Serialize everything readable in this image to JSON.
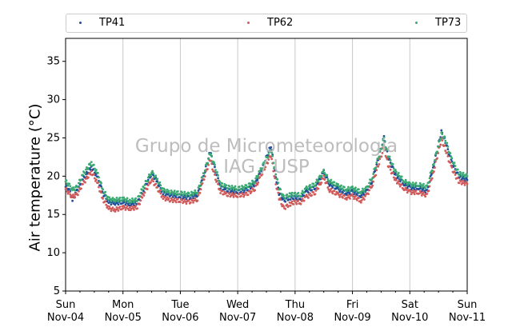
{
  "chart_data": {
    "type": "scatter",
    "ylabel": "Air temperature (°C)",
    "ylim": [
      5,
      38
    ],
    "yticks": [
      5,
      10,
      15,
      20,
      25,
      30,
      35
    ],
    "xlim": [
      "2018-11-04",
      "2018-11-11"
    ],
    "xticks": [
      {
        "day": "Sun",
        "date": "Nov-04"
      },
      {
        "day": "Mon",
        "date": "Nov-05"
      },
      {
        "day": "Tue",
        "date": "Nov-06"
      },
      {
        "day": "Wed",
        "date": "Nov-07"
      },
      {
        "day": "Thu",
        "date": "Nov-08"
      },
      {
        "day": "Fri",
        "date": "Nov-09"
      },
      {
        "day": "Sat",
        "date": "Nov-10"
      },
      {
        "day": "Sun",
        "date": "Nov-11"
      }
    ],
    "grid": "vertical",
    "legend_position": "top",
    "watermark": [
      "Grupo de Micrometeorologia",
      "IAG / USP"
    ],
    "series": [
      {
        "name": "TP41",
        "color": "#1f4e9a",
        "points": [
          [
            0,
            18.6
          ],
          [
            0.08,
            18.0
          ],
          [
            0.12,
            16.8
          ],
          [
            0.2,
            18.2
          ],
          [
            0.3,
            19.6
          ],
          [
            0.45,
            21.2
          ],
          [
            0.55,
            20.0
          ],
          [
            0.65,
            17.8
          ],
          [
            0.75,
            16.6
          ],
          [
            0.85,
            16.5
          ],
          [
            1,
            16.6
          ],
          [
            1.12,
            16.4
          ],
          [
            1.25,
            16.5
          ],
          [
            1.35,
            18.0
          ],
          [
            1.5,
            20.4
          ],
          [
            1.6,
            19.2
          ],
          [
            1.7,
            17.8
          ],
          [
            1.8,
            17.6
          ],
          [
            2,
            17.4
          ],
          [
            2.15,
            17.2
          ],
          [
            2.3,
            17.6
          ],
          [
            2.4,
            19.8
          ],
          [
            2.52,
            23.2
          ],
          [
            2.6,
            21.0
          ],
          [
            2.7,
            18.6
          ],
          [
            2.8,
            18.2
          ],
          [
            3,
            18.0
          ],
          [
            3.15,
            18.2
          ],
          [
            3.3,
            19.0
          ],
          [
            3.4,
            20.5
          ],
          [
            3.58,
            24.0
          ],
          [
            3.65,
            20.5
          ],
          [
            3.72,
            17.8
          ],
          [
            3.8,
            16.8
          ],
          [
            3.92,
            17.2
          ],
          [
            4.0,
            17.2
          ],
          [
            4.1,
            17.2
          ],
          [
            4.2,
            18.0
          ],
          [
            4.35,
            18.6
          ],
          [
            4.5,
            20.5
          ],
          [
            4.6,
            19.0
          ],
          [
            4.75,
            18.3
          ],
          [
            4.9,
            17.8
          ],
          [
            5.0,
            18.0
          ],
          [
            5.15,
            17.5
          ],
          [
            5.25,
            18.0
          ],
          [
            5.35,
            19.5
          ],
          [
            5.55,
            25.0
          ],
          [
            5.62,
            22.5
          ],
          [
            5.75,
            20.2
          ],
          [
            5.9,
            19.0
          ],
          [
            6.0,
            18.5
          ],
          [
            6.15,
            18.5
          ],
          [
            6.3,
            18.0
          ],
          [
            6.42,
            21.5
          ],
          [
            6.55,
            25.8
          ],
          [
            6.62,
            24.5
          ],
          [
            6.72,
            22.0
          ],
          [
            6.85,
            20.0
          ],
          [
            7,
            19.5
          ]
        ]
      },
      {
        "name": "TP62",
        "color": "#d05a5a",
        "points": [
          [
            0,
            18.3
          ],
          [
            0.08,
            17.6
          ],
          [
            0.12,
            17.3
          ],
          [
            0.2,
            17.6
          ],
          [
            0.3,
            19.0
          ],
          [
            0.45,
            20.6
          ],
          [
            0.55,
            19.2
          ],
          [
            0.65,
            17.0
          ],
          [
            0.75,
            15.8
          ],
          [
            0.85,
            15.6
          ],
          [
            1,
            15.9
          ],
          [
            1.12,
            15.8
          ],
          [
            1.25,
            15.9
          ],
          [
            1.35,
            17.5
          ],
          [
            1.5,
            19.6
          ],
          [
            1.6,
            18.4
          ],
          [
            1.7,
            17.2
          ],
          [
            1.8,
            16.9
          ],
          [
            2,
            16.8
          ],
          [
            2.15,
            16.6
          ],
          [
            2.3,
            17.0
          ],
          [
            2.4,
            19.4
          ],
          [
            2.52,
            22.2
          ],
          [
            2.6,
            20.0
          ],
          [
            2.7,
            18.0
          ],
          [
            2.8,
            17.6
          ],
          [
            3,
            17.5
          ],
          [
            3.15,
            17.6
          ],
          [
            3.3,
            18.4
          ],
          [
            3.4,
            20.0
          ],
          [
            3.58,
            22.8
          ],
          [
            3.65,
            19.5
          ],
          [
            3.72,
            17.2
          ],
          [
            3.8,
            15.8
          ],
          [
            3.92,
            16.4
          ],
          [
            4.0,
            16.6
          ],
          [
            4.1,
            16.6
          ],
          [
            4.2,
            17.3
          ],
          [
            4.35,
            17.9
          ],
          [
            4.5,
            19.8
          ],
          [
            4.6,
            18.2
          ],
          [
            4.75,
            17.6
          ],
          [
            4.9,
            17.2
          ],
          [
            5.0,
            17.4
          ],
          [
            5.15,
            16.8
          ],
          [
            5.25,
            17.5
          ],
          [
            5.35,
            19.0
          ],
          [
            5.55,
            23.8
          ],
          [
            5.62,
            21.5
          ],
          [
            5.75,
            19.5
          ],
          [
            5.9,
            18.4
          ],
          [
            6.0,
            17.9
          ],
          [
            6.15,
            17.9
          ],
          [
            6.3,
            17.5
          ],
          [
            6.42,
            20.8
          ],
          [
            6.55,
            24.8
          ],
          [
            6.62,
            23.5
          ],
          [
            6.72,
            21.2
          ],
          [
            6.85,
            19.3
          ],
          [
            7,
            19.0
          ]
        ]
      },
      {
        "name": "TP73",
        "color": "#3aaa72",
        "points": [
          [
            0,
            19.3
          ],
          [
            0.08,
            18.7
          ],
          [
            0.12,
            18.2
          ],
          [
            0.2,
            18.6
          ],
          [
            0.3,
            20.2
          ],
          [
            0.45,
            21.8
          ],
          [
            0.55,
            20.5
          ],
          [
            0.65,
            18.2
          ],
          [
            0.75,
            17.0
          ],
          [
            0.85,
            16.9
          ],
          [
            1,
            17.0
          ],
          [
            1.12,
            16.8
          ],
          [
            1.25,
            16.9
          ],
          [
            1.35,
            18.5
          ],
          [
            1.5,
            20.6
          ],
          [
            1.6,
            19.5
          ],
          [
            1.7,
            18.2
          ],
          [
            1.8,
            17.9
          ],
          [
            2,
            17.8
          ],
          [
            2.15,
            17.6
          ],
          [
            2.3,
            18.0
          ],
          [
            2.4,
            20.2
          ],
          [
            2.52,
            23.0
          ],
          [
            2.6,
            21.3
          ],
          [
            2.7,
            19.0
          ],
          [
            2.8,
            18.6
          ],
          [
            3,
            18.4
          ],
          [
            3.15,
            18.6
          ],
          [
            3.3,
            19.4
          ],
          [
            3.4,
            20.8
          ],
          [
            3.58,
            23.5
          ],
          [
            3.65,
            20.8
          ],
          [
            3.72,
            18.5
          ],
          [
            3.8,
            17.2
          ],
          [
            3.92,
            17.6
          ],
          [
            4.0,
            17.6
          ],
          [
            4.1,
            17.6
          ],
          [
            4.2,
            18.4
          ],
          [
            4.35,
            19.0
          ],
          [
            4.5,
            20.6
          ],
          [
            4.6,
            19.4
          ],
          [
            4.75,
            18.7
          ],
          [
            4.9,
            18.3
          ],
          [
            5.0,
            18.4
          ],
          [
            5.15,
            18.0
          ],
          [
            5.25,
            18.4
          ],
          [
            5.35,
            20.0
          ],
          [
            5.55,
            24.8
          ],
          [
            5.62,
            22.8
          ],
          [
            5.75,
            20.6
          ],
          [
            5.9,
            19.4
          ],
          [
            6.0,
            18.9
          ],
          [
            6.15,
            18.9
          ],
          [
            6.3,
            18.6
          ],
          [
            6.42,
            21.8
          ],
          [
            6.55,
            25.5
          ],
          [
            6.62,
            24.8
          ],
          [
            6.72,
            22.4
          ],
          [
            6.85,
            20.4
          ],
          [
            7,
            20.0
          ]
        ]
      }
    ]
  }
}
